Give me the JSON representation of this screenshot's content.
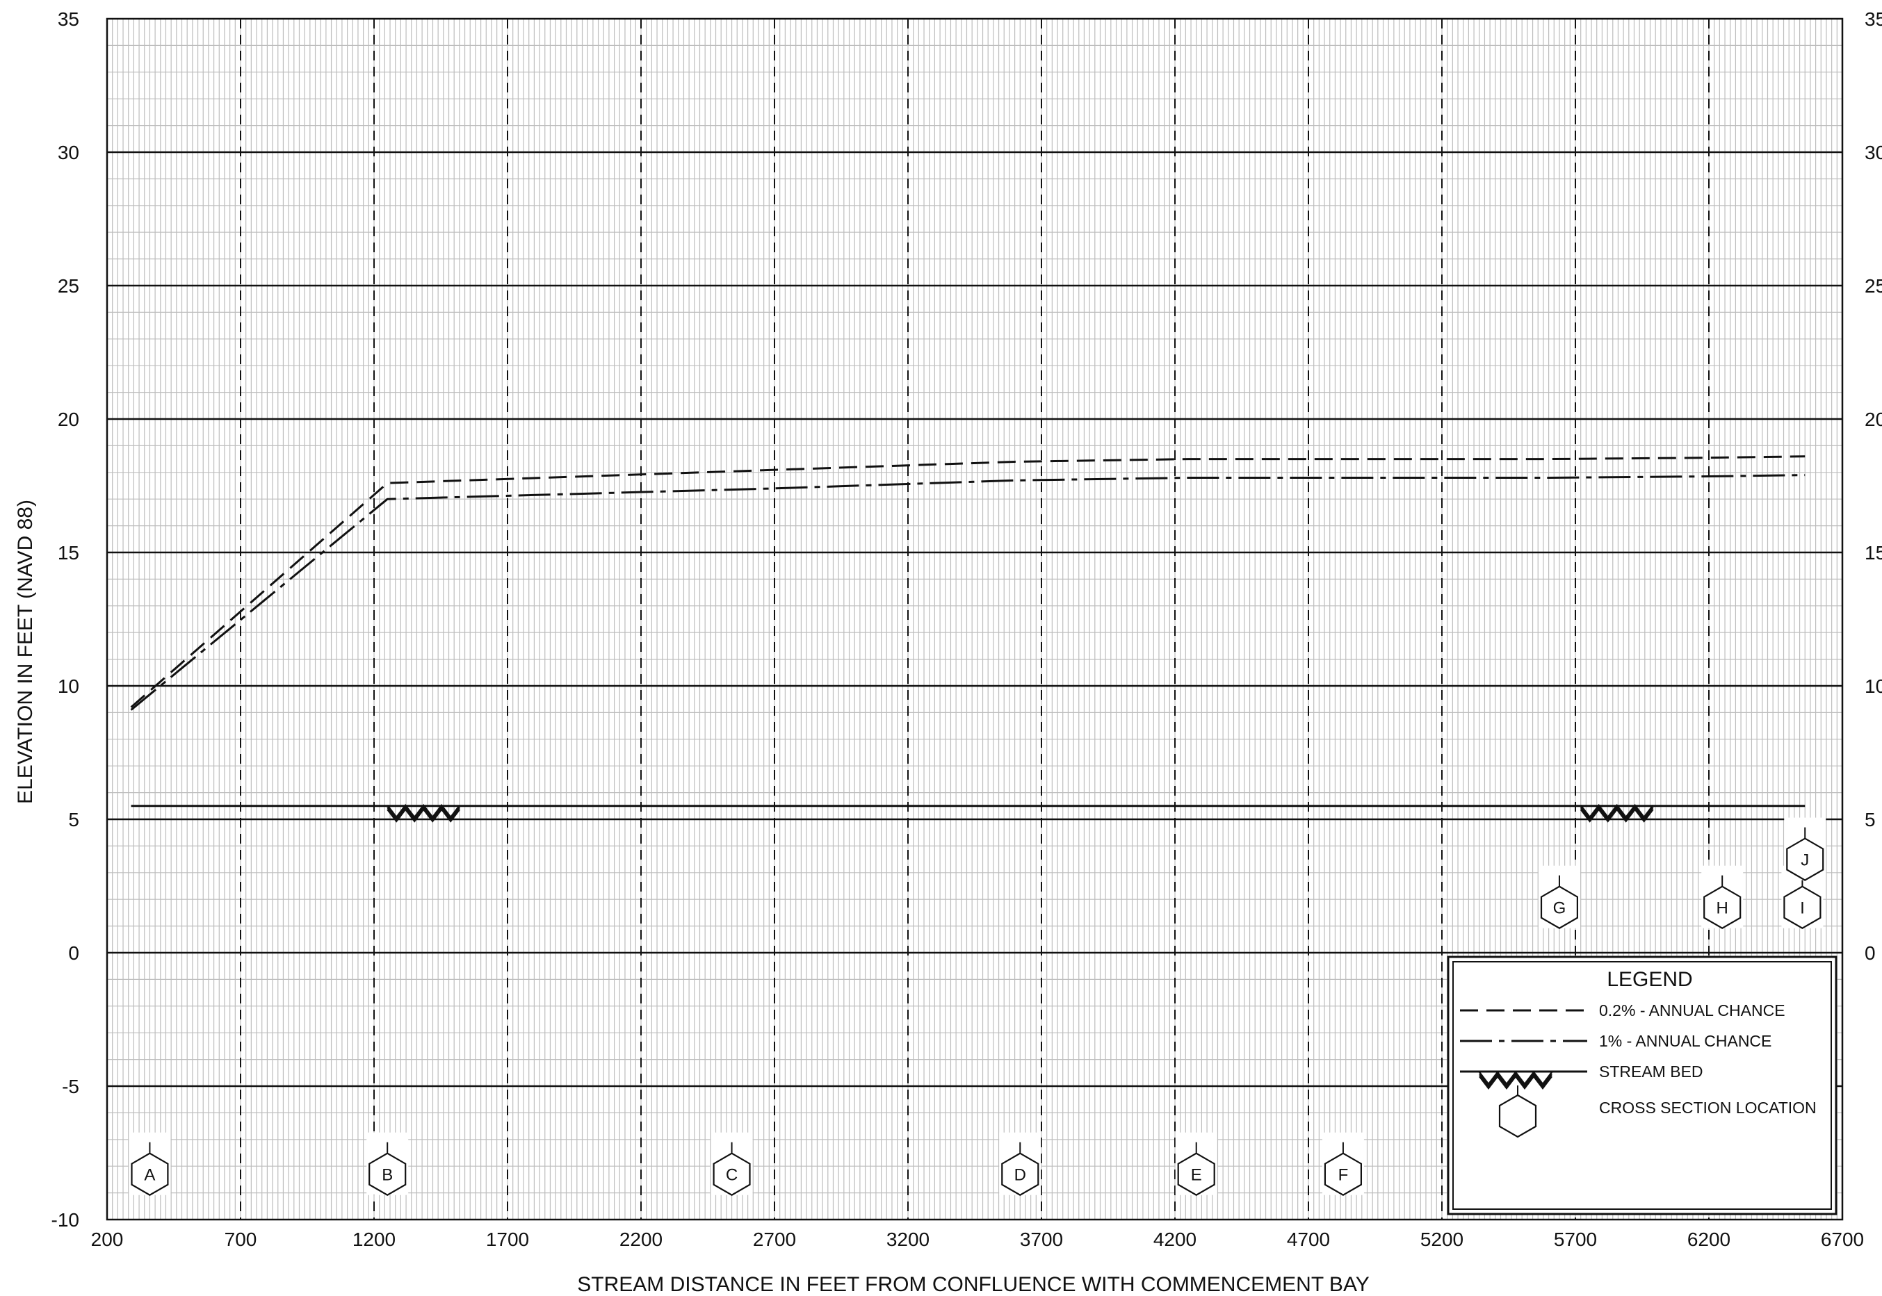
{
  "chart_data": {
    "type": "line",
    "title": "",
    "xlabel": "STREAM DISTANCE IN FEET FROM CONFLUENCE WITH COMMENCEMENT BAY",
    "ylabel": "ELEVATION IN FEET (NAVD 88)",
    "xlim": [
      200,
      6700
    ],
    "ylim": [
      -10,
      35
    ],
    "x_ticks": [
      200,
      700,
      1200,
      1700,
      2200,
      2700,
      3200,
      3700,
      4200,
      4700,
      5200,
      5700,
      6200,
      6700
    ],
    "y_ticks": [
      -10,
      -5,
      0,
      5,
      10,
      15,
      20,
      25,
      30,
      35
    ],
    "right_y_ticks": [
      0,
      5,
      10,
      15,
      20,
      25,
      30,
      35
    ],
    "grid": true,
    "series": [
      {
        "name": "0.2% - ANNUAL CHANCE",
        "style": "dashed",
        "x": [
          290,
          1250,
          3600,
          4250,
          5600,
          6200,
          6560
        ],
        "y": [
          9.2,
          17.6,
          18.4,
          18.5,
          18.5,
          18.55,
          18.6
        ]
      },
      {
        "name": "1% - ANNUAL CHANCE",
        "style": "dash-dot",
        "x": [
          290,
          1250,
          2700,
          3600,
          4250,
          5600,
          6200,
          6560
        ],
        "y": [
          9.1,
          17.0,
          17.4,
          17.7,
          17.8,
          17.8,
          17.85,
          17.9
        ]
      },
      {
        "name": "STREAM BED",
        "style": "solid",
        "x": [
          290,
          6560
        ],
        "y": [
          5.5,
          5.5
        ]
      }
    ],
    "stream_bed_marks": [
      {
        "x_start": 1250,
        "x_end": 1550
      },
      {
        "x_start": 5720,
        "x_end": 6020
      }
    ],
    "cross_sections": [
      {
        "label": "A",
        "x": 360,
        "y": -8.3
      },
      {
        "label": "B",
        "x": 1250,
        "y": -8.3
      },
      {
        "label": "C",
        "x": 2540,
        "y": -8.3
      },
      {
        "label": "D",
        "x": 3620,
        "y": -8.3
      },
      {
        "label": "E",
        "x": 4280,
        "y": -8.3
      },
      {
        "label": "F",
        "x": 4830,
        "y": -8.3
      },
      {
        "label": "G",
        "x": 5640,
        "y": 1.7
      },
      {
        "label": "H",
        "x": 6250,
        "y": 1.7
      },
      {
        "label": "I",
        "x": 6550,
        "y": 1.7
      },
      {
        "label": "J",
        "x": 6560,
        "y": 3.5
      }
    ],
    "legend": {
      "title": "LEGEND",
      "placement": "bottom-right",
      "items": [
        {
          "label": "0.2% - ANNUAL CHANCE",
          "style": "dashed"
        },
        {
          "label": "1% - ANNUAL CHANCE",
          "style": "dash-dot"
        },
        {
          "label": "STREAM BED",
          "style": "stream-bed"
        },
        {
          "label": "CROSS SECTION LOCATION",
          "style": "hexagon"
        }
      ]
    },
    "colors": {
      "line": "#111111",
      "minor_grid": "#bdbdbd",
      "major_grid": "#111111",
      "background": "#ffffff"
    }
  }
}
